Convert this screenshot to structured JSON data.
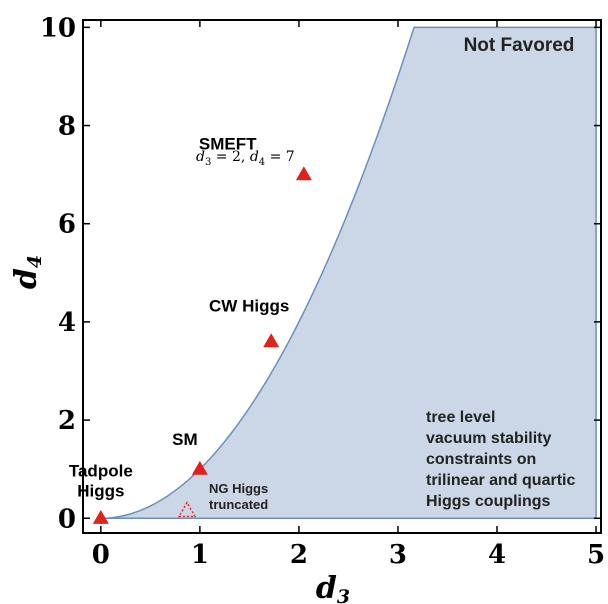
{
  "chart_data": {
    "type": "scatter",
    "xlabel": "d",
    "xlabel_sub": "3",
    "ylabel": "d",
    "ylabel_sub": "4",
    "xlim": [
      -0.18,
      5.05
    ],
    "ylim": [
      -0.3,
      10.15
    ],
    "x_ticks": [
      0,
      1,
      2,
      3,
      4,
      5
    ],
    "y_ticks": [
      0,
      2,
      4,
      6,
      8,
      10
    ],
    "x_tick_labels": [
      "0",
      "1",
      "2",
      "3",
      "4",
      "5"
    ],
    "y_tick_labels": [
      "0",
      "2",
      "4",
      "6",
      "8",
      "10"
    ],
    "region": {
      "label": "Not Favored",
      "boundary": "d4 = d3^2",
      "x_range": [
        0,
        5
      ],
      "y_top": 10,
      "fill": "#cbd7e6",
      "stroke": "#6d8fbb",
      "note_lines": [
        "tree level",
        "vacuum stability",
        "constraints on",
        "trilinear and quartic",
        "Higgs couplings"
      ]
    },
    "points": [
      {
        "name": "Tadpole Higgs",
        "label_lines": [
          "Tadpole",
          "Higgs"
        ],
        "x": 0,
        "y": 0,
        "style": "filled"
      },
      {
        "name": "SM",
        "label_lines": [
          "SM"
        ],
        "x": 1,
        "y": 1,
        "style": "filled"
      },
      {
        "name": "CW Higgs",
        "label_lines": [
          "CW Higgs"
        ],
        "x": 1.72,
        "y": 3.6,
        "style": "filled"
      },
      {
        "name": "SMEFT",
        "label_lines": [
          "SMEFT"
        ],
        "x": 2.05,
        "y": 7.0,
        "style": "filled"
      },
      {
        "name": "NG Higgs truncated",
        "label_lines": [
          "NG Higgs",
          "truncated"
        ],
        "x": 0.87,
        "y": 0.15,
        "style": "dotted"
      }
    ],
    "smeft_equation": {
      "d3": "2",
      "d4": "7"
    },
    "marker_color": "#e0221c"
  }
}
